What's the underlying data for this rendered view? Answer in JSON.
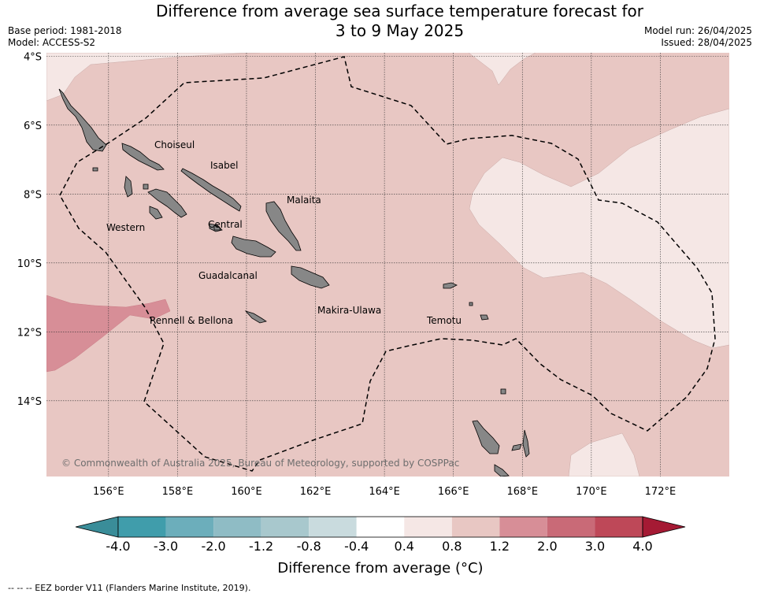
{
  "header": {
    "title_line1": "Difference from average sea surface temperature forecast for",
    "title_line2": "3 to 9 May 2025",
    "base_period": "Base period: 1981-2018",
    "model": "Model: ACCESS-S2",
    "model_run": "Model run: 26/04/2025",
    "issued": "Issued: 28/04/2025"
  },
  "map": {
    "lat_ticks": [
      "4°S",
      "6°S",
      "8°S",
      "10°S",
      "12°S",
      "14°S"
    ],
    "lon_ticks": [
      "156°E",
      "158°E",
      "160°E",
      "162°E",
      "164°E",
      "166°E",
      "168°E",
      "170°E",
      "172°E"
    ],
    "lon_range": [
      154.2,
      174.0
    ],
    "lat_range": [
      -16.2,
      -3.9
    ],
    "province_labels": [
      "Choiseul",
      "Isabel",
      "Malaita",
      "Western",
      "Central",
      "Guadalcanal",
      "Rennell & Bellona",
      "Makira-Ulawa",
      "Temotu"
    ],
    "copyright": "© Commonwealth of Australia 2025, Bureau of Meteorology, supported by COSPPac",
    "colors": {
      "land": "#878787",
      "anom_04_08": "#f5e7e5",
      "anom_08_12": "#e8c7c3",
      "anom_12_20": "#d78e97",
      "eez_border": "#000000"
    }
  },
  "colorbar": {
    "ticks": [
      "-4.0",
      "-3.0",
      "-2.0",
      "-1.2",
      "-0.8",
      "-0.4",
      "0.4",
      "0.8",
      "1.2",
      "2.0",
      "3.0",
      "4.0"
    ],
    "colors": [
      "#409dab",
      "#6caebb",
      "#8fbcc5",
      "#a8c8cd",
      "#c9dbde",
      "#ffffff",
      "#f5e7e5",
      "#e8c7c3",
      "#d78e97",
      "#c96a77",
      "#be4858"
    ],
    "low_extend_color": "#3a8d99",
    "high_extend_color": "#a51a34",
    "label": "Difference from average ($^\\circ$C)",
    "label_display": "Difference from average (°C)"
  },
  "footer": {
    "legend_text": "-- -- -- EEZ border V11 (Flanders Marine Institute, 2019)."
  }
}
